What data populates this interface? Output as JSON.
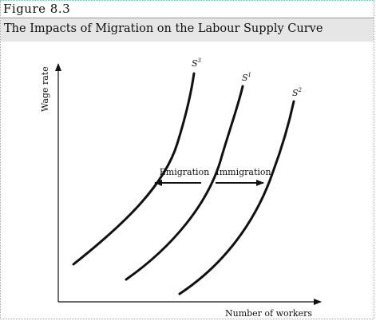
{
  "figure": {
    "label": "Figure 8.3",
    "title": "The Impacts of Migration on the Labour Supply Curve"
  },
  "diagram": {
    "y_axis_label": "Wage rate",
    "x_axis_label": "Number of workers",
    "curves": [
      {
        "id": "S3",
        "label": "S",
        "superscript": "3"
      },
      {
        "id": "S1",
        "label": "S",
        "superscript": "1"
      },
      {
        "id": "S2",
        "label": "S",
        "superscript": "2"
      }
    ],
    "arrows": [
      {
        "label": "Emigration",
        "direction": "left"
      },
      {
        "label": "Immigration",
        "direction": "right"
      }
    ]
  }
}
